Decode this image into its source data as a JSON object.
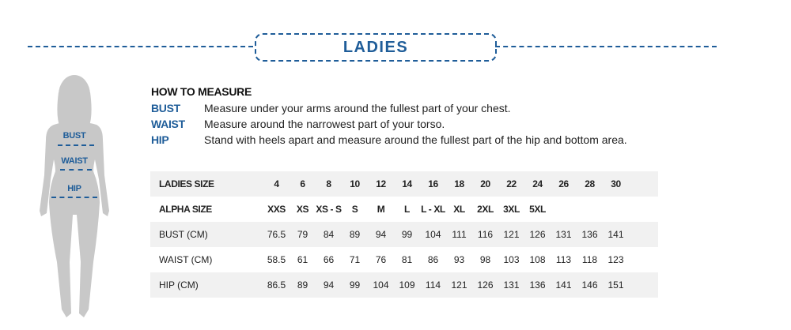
{
  "title": "LADIES",
  "figure_labels": {
    "bust": "BUST",
    "waist": "WAIST",
    "hip": "HIP"
  },
  "how_to_measure": {
    "heading": "HOW TO MEASURE",
    "items": [
      {
        "key": "BUST",
        "text": "Measure under your arms around the fullest part of your chest."
      },
      {
        "key": "WAIST",
        "text": "Measure around the narrowest part of your torso."
      },
      {
        "key": "HIP",
        "text": "Stand with heels apart and measure around the fullest part of the hip and bottom area."
      }
    ]
  },
  "table": {
    "rows": [
      {
        "label": "LADIES SIZE",
        "values": [
          "4",
          "6",
          "8",
          "10",
          "12",
          "14",
          "16",
          "18",
          "20",
          "22",
          "24",
          "26",
          "28",
          "30"
        ]
      },
      {
        "label": "ALPHA SIZE",
        "values": [
          "XXS",
          "XS",
          "XS - S",
          "S",
          "M",
          "L",
          "L - XL",
          "XL",
          "2XL",
          "3XL",
          "5XL",
          "",
          "",
          ""
        ]
      },
      {
        "label": "BUST (CM)",
        "values": [
          "76.5",
          "79",
          "84",
          "89",
          "94",
          "99",
          "104",
          "111",
          "116",
          "121",
          "126",
          "131",
          "136",
          "141"
        ]
      },
      {
        "label": "WAIST (CM)",
        "values": [
          "58.5",
          "61",
          "66",
          "71",
          "76",
          "81",
          "86",
          "93",
          "98",
          "103",
          "108",
          "113",
          "118",
          "123"
        ]
      },
      {
        "label": "HIP (CM)",
        "values": [
          "86.5",
          "89",
          "94",
          "99",
          "104",
          "109",
          "114",
          "121",
          "126",
          "131",
          "136",
          "141",
          "146",
          "151"
        ]
      }
    ]
  },
  "colors": {
    "accent": "#1f5d99",
    "silhouette": "#c8c8c8",
    "row_shade": "#f1f1f1"
  }
}
